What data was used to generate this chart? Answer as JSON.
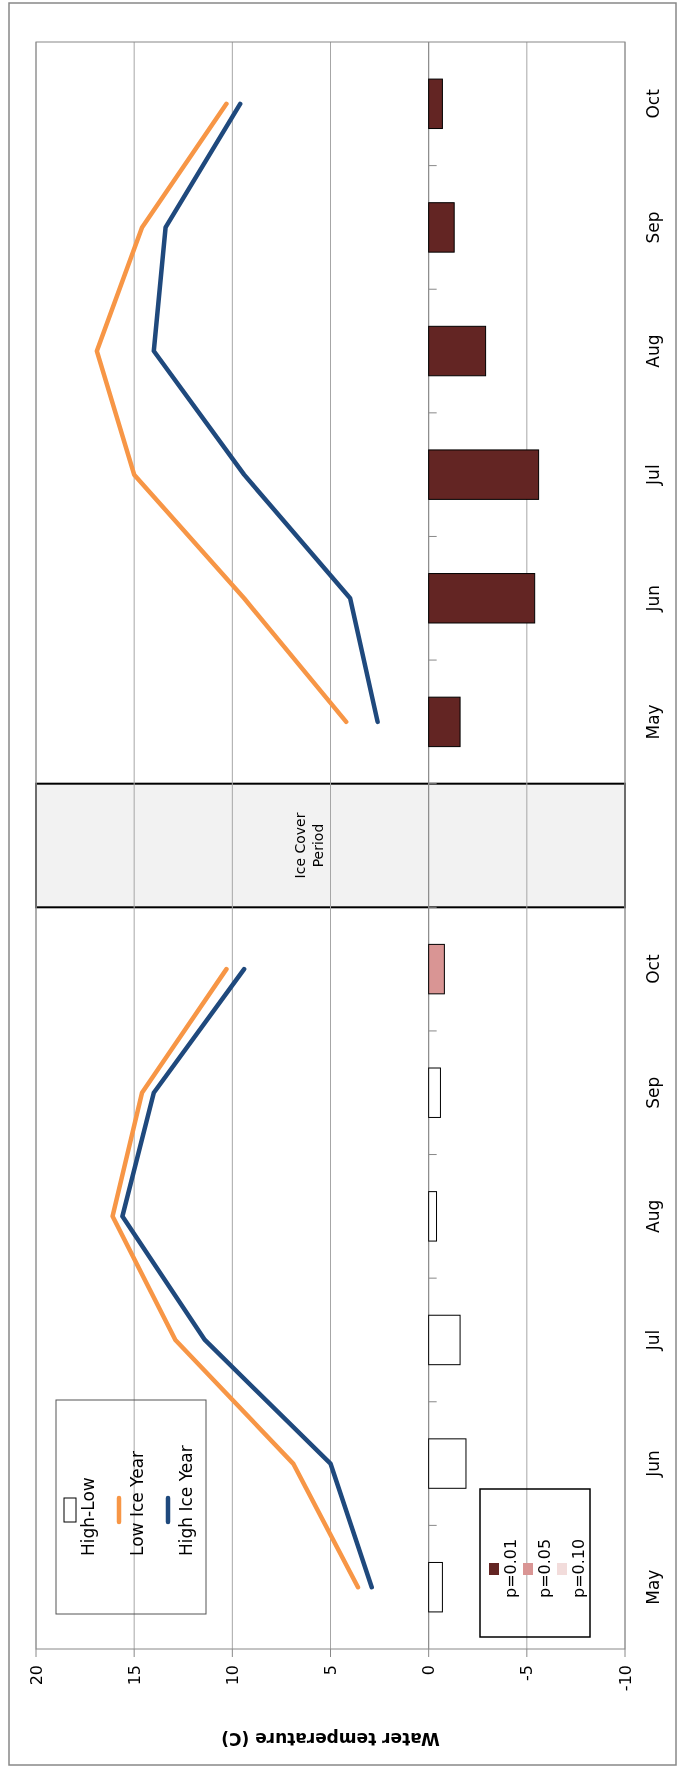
{
  "chart_data": {
    "type": "bar",
    "orientation": "horizontal",
    "xlabel": "Water temperature (C)",
    "categories": [
      "Oct",
      "Sep",
      "Aug",
      "Jul",
      "Jun",
      "May",
      null,
      "Oct",
      "Sep",
      "Aug",
      "Jul",
      "Jun",
      "May"
    ],
    "series": [
      {
        "name": "High-Low",
        "color": "#ffffff",
        "values": [
          null,
          null,
          null,
          null,
          null,
          null,
          null,
          null,
          -0.6,
          -0.4,
          -1.6,
          -1.9,
          -0.7
        ]
      },
      {
        "name": "Low Ice Year",
        "type": "line",
        "color": "#f79646",
        "values": [
          10.3,
          14.6,
          16.9,
          15.0,
          9.4,
          4.2,
          null,
          10.3,
          14.6,
          16.1,
          12.9,
          6.9,
          3.6
        ]
      },
      {
        "name": "High Ice Year",
        "type": "line",
        "color": "#1f497d",
        "values": [
          9.6,
          13.4,
          14.0,
          9.4,
          4.0,
          2.6,
          null,
          9.4,
          14.0,
          15.6,
          11.4,
          5.0,
          2.9
        ]
      },
      {
        "name": "p=0.01",
        "color": "#632523",
        "values": [
          -0.7,
          -1.3,
          -2.9,
          -5.6,
          -5.4,
          -1.6,
          null,
          null,
          null,
          null,
          null,
          null,
          null
        ]
      },
      {
        "name": "p=0.05",
        "color": "#d99594",
        "values": [
          null,
          null,
          null,
          null,
          null,
          null,
          null,
          -0.8,
          null,
          null,
          null,
          null,
          null
        ]
      },
      {
        "name": "p=0.10",
        "color": "#f2dcdb",
        "values": [
          null,
          null,
          null,
          null,
          null,
          null,
          null,
          null,
          null,
          null,
          null,
          null,
          null
        ]
      }
    ],
    "stacked": true,
    "xlim": [
      20,
      -10
    ],
    "xticks": [
      20,
      15,
      10,
      5,
      0,
      -5,
      -10
    ],
    "grid": "x",
    "legend": "bottom left",
    "annotations": [
      "Ice Cover Period"
    ]
  }
}
